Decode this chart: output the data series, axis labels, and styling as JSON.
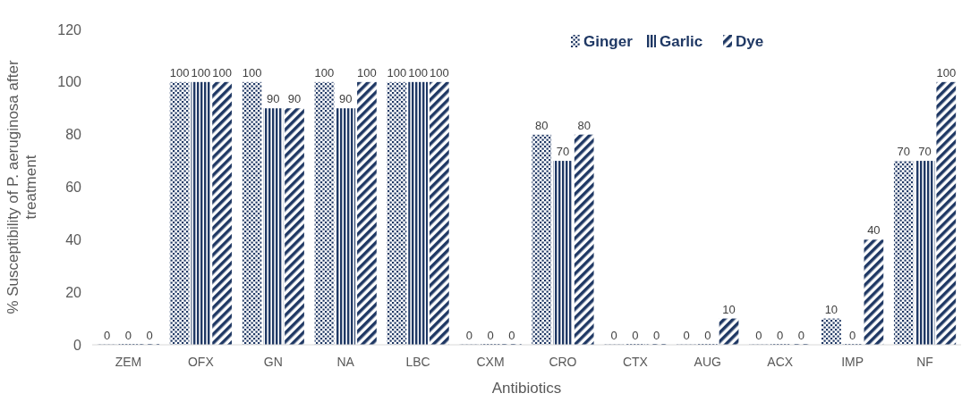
{
  "chart_data": {
    "type": "bar",
    "xlabel": "Antibiotics",
    "ylabel": "% Susceptibility of P. aeruginosa after treatment",
    "categories": [
      "ZEM",
      "OFX",
      "GN",
      "NA",
      "LBC",
      "CXM",
      "CRO",
      "CTX",
      "AUG",
      "ACX",
      "IMP",
      "NF"
    ],
    "series": [
      {
        "name": "Ginger",
        "color": "#1f3864",
        "values": [
          0,
          100,
          100,
          100,
          100,
          0,
          80,
          0,
          0,
          0,
          10,
          70
        ]
      },
      {
        "name": "Garlic",
        "color": "#1f3864",
        "values": [
          0,
          100,
          90,
          90,
          100,
          0,
          70,
          0,
          0,
          0,
          0,
          70
        ]
      },
      {
        "name": "Dye",
        "color": "#1f3864",
        "values": [
          0,
          100,
          90,
          100,
          100,
          0,
          80,
          0,
          10,
          0,
          40,
          100
        ]
      }
    ],
    "ylim": [
      0,
      120
    ],
    "yticks": [
      0,
      20,
      40,
      60,
      80,
      100,
      120
    ],
    "grid": false,
    "legend": "top right",
    "data_labels": true
  }
}
